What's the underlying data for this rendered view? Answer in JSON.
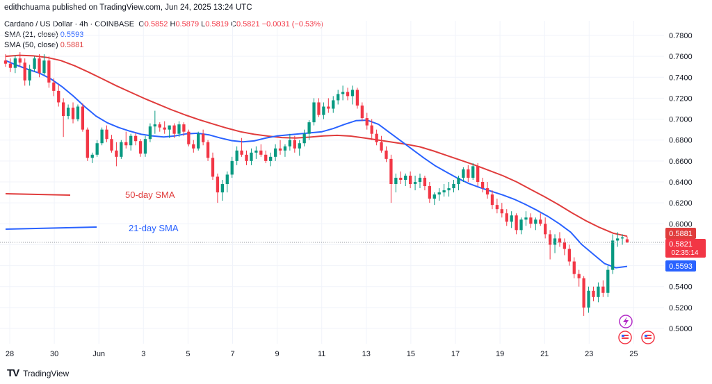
{
  "header": {
    "published": "edithchuama published on TradingView.com, Jun 24, 2025 13:24 UTC"
  },
  "legend": {
    "symbol": "Cardano / US Dollar · 4h · COINBASE",
    "o_label": "O",
    "o_value": "0.5852",
    "h_label": "H",
    "h_value": "0.5879",
    "l_label": "L",
    "l_value": "0.5819",
    "c_label": "C",
    "c_value": "0.5821",
    "change": "−0.0031 (−0.53%)",
    "sma21_label": "SMA (21, close)",
    "sma21_value": "0.5593",
    "sma50_label": "SMA (50, close)",
    "sma50_value": "0.5881"
  },
  "annotations": {
    "sma50_text": "50-day SMA",
    "sma21_text": "21-day SMA"
  },
  "price_tags": {
    "sma50": "0.5881",
    "last": "0.5821",
    "countdown": "02:35:14",
    "sma21": "0.5593"
  },
  "footer": {
    "brand": "TradingView",
    "logo_mark": "TV"
  },
  "colors": {
    "up": "#089981",
    "down": "#f23645",
    "sma21": "#2962ff",
    "sma50": "#e03c3c",
    "grid": "#f0f3fa",
    "text": "#131722"
  },
  "chart_data": {
    "type": "candlestick",
    "symbol": "Cardano / US Dollar",
    "timeframe": "4h",
    "x_ticks": [
      "28",
      "30",
      "Jun",
      "3",
      "5",
      "7",
      "9",
      "11",
      "13",
      "15",
      "17",
      "19",
      "21",
      "23",
      "25"
    ],
    "y_ticks": [
      "0.5000",
      "0.5200",
      "0.5400",
      "0.5600",
      "0.5800",
      "0.6000",
      "0.6200",
      "0.6400",
      "0.6600",
      "0.6800",
      "0.7000",
      "0.7200",
      "0.7400",
      "0.7600",
      "0.7800"
    ],
    "ylim": [
      0.49,
      0.79
    ],
    "candles": [
      [
        0.756,
        0.762,
        0.75,
        0.753
      ],
      [
        0.753,
        0.758,
        0.745,
        0.749
      ],
      [
        0.749,
        0.761,
        0.744,
        0.758
      ],
      [
        0.758,
        0.764,
        0.75,
        0.754
      ],
      [
        0.754,
        0.758,
        0.732,
        0.737
      ],
      [
        0.737,
        0.752,
        0.732,
        0.748
      ],
      [
        0.748,
        0.76,
        0.745,
        0.758
      ],
      [
        0.758,
        0.762,
        0.74,
        0.744
      ],
      [
        0.744,
        0.762,
        0.742,
        0.756
      ],
      [
        0.756,
        0.76,
        0.73,
        0.735
      ],
      [
        0.735,
        0.739,
        0.722,
        0.727
      ],
      [
        0.727,
        0.733,
        0.712,
        0.716
      ],
      [
        0.716,
        0.72,
        0.683,
        0.703
      ],
      [
        0.703,
        0.714,
        0.7,
        0.711
      ],
      [
        0.711,
        0.716,
        0.696,
        0.7
      ],
      [
        0.7,
        0.714,
        0.698,
        0.712
      ],
      [
        0.712,
        0.715,
        0.688,
        0.69
      ],
      [
        0.69,
        0.692,
        0.66,
        0.663
      ],
      [
        0.663,
        0.668,
        0.658,
        0.666
      ],
      [
        0.666,
        0.68,
        0.664,
        0.677
      ],
      [
        0.677,
        0.692,
        0.675,
        0.69
      ],
      [
        0.69,
        0.694,
        0.678,
        0.681
      ],
      [
        0.681,
        0.685,
        0.668,
        0.67
      ],
      [
        0.67,
        0.678,
        0.655,
        0.664
      ],
      [
        0.664,
        0.68,
        0.662,
        0.678
      ],
      [
        0.678,
        0.688,
        0.672,
        0.675
      ],
      [
        0.675,
        0.686,
        0.67,
        0.684
      ],
      [
        0.684,
        0.687,
        0.675,
        0.679
      ],
      [
        0.679,
        0.681,
        0.664,
        0.667
      ],
      [
        0.667,
        0.684,
        0.664,
        0.681
      ],
      [
        0.681,
        0.696,
        0.678,
        0.693
      ],
      [
        0.693,
        0.708,
        0.686,
        0.695
      ],
      [
        0.695,
        0.697,
        0.688,
        0.692
      ],
      [
        0.692,
        0.698,
        0.686,
        0.69
      ],
      [
        0.69,
        0.694,
        0.682,
        0.694
      ],
      [
        0.694,
        0.696,
        0.682,
        0.686
      ],
      [
        0.686,
        0.698,
        0.683,
        0.695
      ],
      [
        0.695,
        0.697,
        0.684,
        0.688
      ],
      [
        0.688,
        0.69,
        0.674,
        0.676
      ],
      [
        0.676,
        0.68,
        0.668,
        0.672
      ],
      [
        0.672,
        0.688,
        0.67,
        0.686
      ],
      [
        0.686,
        0.69,
        0.675,
        0.678
      ],
      [
        0.678,
        0.68,
        0.66,
        0.663
      ],
      [
        0.663,
        0.668,
        0.642,
        0.645
      ],
      [
        0.645,
        0.648,
        0.62,
        0.63
      ],
      [
        0.63,
        0.642,
        0.622,
        0.638
      ],
      [
        0.638,
        0.65,
        0.63,
        0.647
      ],
      [
        0.647,
        0.664,
        0.644,
        0.66
      ],
      [
        0.66,
        0.674,
        0.656,
        0.67
      ],
      [
        0.67,
        0.682,
        0.664,
        0.666
      ],
      [
        0.666,
        0.67,
        0.656,
        0.66
      ],
      [
        0.66,
        0.672,
        0.656,
        0.668
      ],
      [
        0.668,
        0.674,
        0.662,
        0.67
      ],
      [
        0.67,
        0.676,
        0.664,
        0.666
      ],
      [
        0.666,
        0.67,
        0.658,
        0.66
      ],
      [
        0.66,
        0.668,
        0.655,
        0.664
      ],
      [
        0.664,
        0.676,
        0.66,
        0.672
      ],
      [
        0.672,
        0.68,
        0.666,
        0.67
      ],
      [
        0.67,
        0.676,
        0.664,
        0.674
      ],
      [
        0.674,
        0.686,
        0.67,
        0.68
      ],
      [
        0.68,
        0.684,
        0.668,
        0.672
      ],
      [
        0.672,
        0.68,
        0.665,
        0.677
      ],
      [
        0.677,
        0.69,
        0.674,
        0.686
      ],
      [
        0.686,
        0.699,
        0.68,
        0.697
      ],
      [
        0.697,
        0.72,
        0.694,
        0.716
      ],
      [
        0.716,
        0.72,
        0.702,
        0.704
      ],
      [
        0.704,
        0.716,
        0.7,
        0.712
      ],
      [
        0.712,
        0.72,
        0.706,
        0.71
      ],
      [
        0.71,
        0.722,
        0.706,
        0.718
      ],
      [
        0.718,
        0.728,
        0.714,
        0.724
      ],
      [
        0.724,
        0.732,
        0.718,
        0.726
      ],
      [
        0.726,
        0.73,
        0.718,
        0.722
      ],
      [
        0.722,
        0.732,
        0.714,
        0.728
      ],
      [
        0.728,
        0.73,
        0.71,
        0.713
      ],
      [
        0.713,
        0.716,
        0.698,
        0.701
      ],
      [
        0.701,
        0.706,
        0.69,
        0.694
      ],
      [
        0.694,
        0.7,
        0.68,
        0.686
      ],
      [
        0.686,
        0.69,
        0.675,
        0.678
      ],
      [
        0.678,
        0.684,
        0.668,
        0.67
      ],
      [
        0.67,
        0.674,
        0.659,
        0.662
      ],
      [
        0.662,
        0.666,
        0.62,
        0.638
      ],
      [
        0.638,
        0.648,
        0.63,
        0.644
      ],
      [
        0.644,
        0.65,
        0.638,
        0.642
      ],
      [
        0.642,
        0.648,
        0.636,
        0.646
      ],
      [
        0.646,
        0.65,
        0.634,
        0.638
      ],
      [
        0.638,
        0.646,
        0.632,
        0.64
      ],
      [
        0.64,
        0.648,
        0.634,
        0.644
      ],
      [
        0.644,
        0.646,
        0.632,
        0.636
      ],
      [
        0.636,
        0.64,
        0.62,
        0.624
      ],
      [
        0.624,
        0.63,
        0.618,
        0.628
      ],
      [
        0.628,
        0.634,
        0.622,
        0.63
      ],
      [
        0.63,
        0.638,
        0.626,
        0.632
      ],
      [
        0.632,
        0.64,
        0.626,
        0.634
      ],
      [
        0.634,
        0.642,
        0.63,
        0.638
      ],
      [
        0.638,
        0.646,
        0.632,
        0.644
      ],
      [
        0.644,
        0.654,
        0.64,
        0.652
      ],
      [
        0.652,
        0.656,
        0.64,
        0.644
      ],
      [
        0.644,
        0.658,
        0.642,
        0.655
      ],
      [
        0.655,
        0.658,
        0.636,
        0.64
      ],
      [
        0.64,
        0.644,
        0.63,
        0.634
      ],
      [
        0.634,
        0.64,
        0.624,
        0.628
      ],
      [
        0.628,
        0.632,
        0.614,
        0.618
      ],
      [
        0.618,
        0.624,
        0.61,
        0.614
      ],
      [
        0.614,
        0.62,
        0.606,
        0.61
      ],
      [
        0.61,
        0.614,
        0.598,
        0.602
      ],
      [
        0.602,
        0.612,
        0.596,
        0.608
      ],
      [
        0.608,
        0.61,
        0.59,
        0.594
      ],
      [
        0.594,
        0.606,
        0.59,
        0.604
      ],
      [
        0.604,
        0.612,
        0.598,
        0.606
      ],
      [
        0.606,
        0.61,
        0.596,
        0.6
      ],
      [
        0.6,
        0.606,
        0.594,
        0.604
      ],
      [
        0.604,
        0.61,
        0.598,
        0.6
      ],
      [
        0.6,
        0.606,
        0.586,
        0.59
      ],
      [
        0.59,
        0.594,
        0.566,
        0.58
      ],
      [
        0.58,
        0.59,
        0.572,
        0.586
      ],
      [
        0.586,
        0.592,
        0.578,
        0.582
      ],
      [
        0.582,
        0.586,
        0.57,
        0.576
      ],
      [
        0.576,
        0.58,
        0.56,
        0.564
      ],
      [
        0.564,
        0.568,
        0.548,
        0.552
      ],
      [
        0.552,
        0.556,
        0.54,
        0.548
      ],
      [
        0.548,
        0.55,
        0.512,
        0.52
      ],
      [
        0.52,
        0.54,
        0.515,
        0.536
      ],
      [
        0.536,
        0.54,
        0.526,
        0.53
      ],
      [
        0.53,
        0.544,
        0.525,
        0.54
      ],
      [
        0.54,
        0.546,
        0.53,
        0.534
      ],
      [
        0.534,
        0.56,
        0.53,
        0.556
      ],
      [
        0.556,
        0.59,
        0.552,
        0.584
      ],
      [
        0.584,
        0.592,
        0.578,
        0.586
      ],
      [
        0.586,
        0.59,
        0.58,
        0.587
      ],
      [
        0.5852,
        0.5879,
        0.5819,
        0.5821
      ]
    ],
    "sma21_close": [
      0.756,
      0.7515,
      0.7475,
      0.744,
      0.7385,
      0.731,
      0.722,
      0.712,
      0.703,
      0.6965,
      0.692,
      0.6885,
      0.6855,
      0.684,
      0.683,
      0.684,
      0.686,
      0.6865,
      0.685,
      0.682,
      0.6795,
      0.6783,
      0.6792,
      0.6819,
      0.6839,
      0.685,
      0.686,
      0.687,
      0.688,
      0.691,
      0.695,
      0.6985,
      0.699,
      0.695,
      0.687,
      0.679,
      0.671,
      0.663,
      0.6555,
      0.6495,
      0.6435,
      0.6385,
      0.6345,
      0.631,
      0.6275,
      0.6235,
      0.6185,
      0.613,
      0.607,
      0.6,
      0.592,
      0.58,
      0.571,
      0.562,
      0.558,
      0.5593
    ],
    "sma50_close": [
      0.76,
      0.761,
      0.7605,
      0.759,
      0.756,
      0.751,
      0.745,
      0.7385,
      0.732,
      0.726,
      0.72,
      0.7145,
      0.709,
      0.704,
      0.6995,
      0.6955,
      0.6915,
      0.688,
      0.6855,
      0.6838,
      0.6824,
      0.682,
      0.6828,
      0.684,
      0.6845,
      0.6838,
      0.682,
      0.68,
      0.678,
      0.676,
      0.6735,
      0.6695,
      0.665,
      0.6605,
      0.656,
      0.651,
      0.646,
      0.64,
      0.633,
      0.626,
      0.6185,
      0.6105,
      0.603,
      0.5965,
      0.591,
      0.5881
    ],
    "last_price": 0.5821
  }
}
